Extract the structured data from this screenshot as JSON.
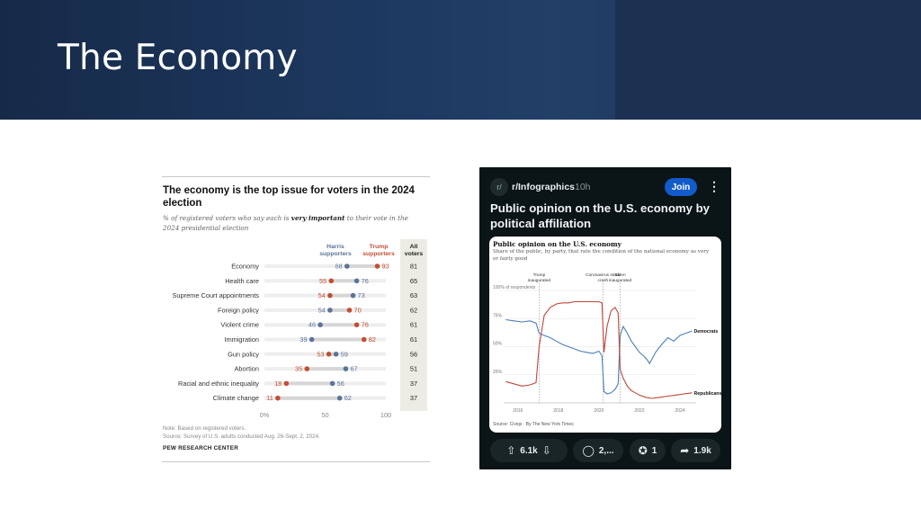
{
  "slide": {
    "title": "The Economy"
  },
  "pew": {
    "title": "The economy is the top issue for voters in the 2024 election",
    "subtitle_pre": "% of registered voters who say each is ",
    "subtitle_bold": "very important",
    "subtitle_post": " to their vote in the 2024 presidential election",
    "col_harris": "Harris supporters",
    "col_trump": "Trump supporters",
    "col_all": "All voters",
    "note": "Note: Based on registered voters.",
    "source": "Source: Survey of U.S. adults conducted Aug. 26-Sept. 2, 2024.",
    "brand": "PEW RESEARCH CENTER"
  },
  "chart_data": [
    {
      "type": "dot",
      "title": "The economy is the top issue for voters in the 2024 election",
      "xlim": [
        0,
        100
      ],
      "xticks": [
        "0%",
        "50",
        "100"
      ],
      "categories": [
        "Economy",
        "Health care",
        "Supreme Court appointments",
        "Foreign policy",
        "Violent crime",
        "Immigration",
        "Gun policy",
        "Abortion",
        "Racial and ethnic inequality",
        "Climate change"
      ],
      "series": [
        {
          "name": "Harris supporters",
          "color": "#5b7398",
          "values": [
            68,
            76,
            73,
            54,
            46,
            39,
            59,
            67,
            56,
            62
          ]
        },
        {
          "name": "Trump supporters",
          "color": "#c24e33",
          "values": [
            93,
            55,
            54,
            70,
            76,
            82,
            53,
            35,
            18,
            11
          ]
        },
        {
          "name": "All voters",
          "values": [
            81,
            65,
            63,
            62,
            61,
            61,
            56,
            51,
            37,
            37
          ]
        }
      ]
    },
    {
      "type": "line",
      "title": "Public opinion on the U.S. economy",
      "subtitle": "Share of the public, by party, that rate the condition of the national economy as very or fairly good",
      "ylim": [
        0,
        100
      ],
      "yticks": [
        "25%",
        "50%",
        "75%",
        "100% of respondents"
      ],
      "xticks": [
        "2016",
        "2018",
        "2020",
        "2022",
        "2024"
      ],
      "annotations": [
        {
          "label": "Trump inaugurated",
          "x": 2017.05
        },
        {
          "label": "Coronavirus stock crash",
          "x": 2020.2
        },
        {
          "label": "Biden inaugurated",
          "x": 2021.05
        }
      ],
      "series": [
        {
          "name": "Democrats",
          "color": "#4a7fb5",
          "points": [
            [
              2015.4,
              74
            ],
            [
              2015.8,
              73
            ],
            [
              2016.2,
              72
            ],
            [
              2016.6,
              73
            ],
            [
              2016.9,
              71
            ],
            [
              2017.05,
              62
            ],
            [
              2017.3,
              60
            ],
            [
              2017.6,
              58
            ],
            [
              2017.9,
              55
            ],
            [
              2018.2,
              52
            ],
            [
              2018.5,
              50
            ],
            [
              2018.8,
              48
            ],
            [
              2019.1,
              46
            ],
            [
              2019.4,
              45
            ],
            [
              2019.7,
              44
            ],
            [
              2020.0,
              46
            ],
            [
              2020.15,
              42
            ],
            [
              2020.25,
              10
            ],
            [
              2020.4,
              8
            ],
            [
              2020.6,
              9
            ],
            [
              2020.8,
              12
            ],
            [
              2020.95,
              17
            ],
            [
              2021.05,
              60
            ],
            [
              2021.2,
              68
            ],
            [
              2021.4,
              62
            ],
            [
              2021.6,
              55
            ],
            [
              2021.8,
              50
            ],
            [
              2022.0,
              45
            ],
            [
              2022.2,
              42
            ],
            [
              2022.4,
              38
            ],
            [
              2022.5,
              35
            ],
            [
              2022.8,
              45
            ],
            [
              2023.1,
              52
            ],
            [
              2023.4,
              58
            ],
            [
              2023.7,
              55
            ],
            [
              2024.0,
              60
            ],
            [
              2024.3,
              62
            ],
            [
              2024.6,
              64
            ]
          ]
        },
        {
          "name": "Republicans",
          "color": "#c0453a",
          "points": [
            [
              2015.4,
              19
            ],
            [
              2015.8,
              17
            ],
            [
              2016.2,
              15
            ],
            [
              2016.6,
              16
            ],
            [
              2016.9,
              18
            ],
            [
              2017.05,
              50
            ],
            [
              2017.3,
              78
            ],
            [
              2017.6,
              85
            ],
            [
              2017.9,
              88
            ],
            [
              2018.2,
              89
            ],
            [
              2018.5,
              89
            ],
            [
              2018.8,
              90
            ],
            [
              2019.1,
              90
            ],
            [
              2019.4,
              90
            ],
            [
              2019.7,
              90
            ],
            [
              2020.0,
              90
            ],
            [
              2020.15,
              89
            ],
            [
              2020.25,
              45
            ],
            [
              2020.4,
              68
            ],
            [
              2020.6,
              82
            ],
            [
              2020.8,
              85
            ],
            [
              2020.95,
              80
            ],
            [
              2021.05,
              30
            ],
            [
              2021.2,
              22
            ],
            [
              2021.4,
              15
            ],
            [
              2021.6,
              11
            ],
            [
              2021.8,
              9
            ],
            [
              2022.0,
              7
            ],
            [
              2022.3,
              5
            ],
            [
              2022.6,
              4
            ],
            [
              2023.0,
              5
            ],
            [
              2023.4,
              6
            ],
            [
              2023.8,
              7
            ],
            [
              2024.2,
              8
            ],
            [
              2024.6,
              9
            ]
          ]
        }
      ],
      "source": "Source: Civiqs  ·  By The New York Times"
    }
  ],
  "reddit": {
    "icon_glyph": "r/",
    "subreddit": "r/Infographics",
    "time": "10h",
    "join_label": "Join",
    "more_glyph": "⋮",
    "post_title": "Public opinion on the U.S. economy by political affiliation",
    "upvotes": "6.1k",
    "comments": "2,...",
    "award_count": "1",
    "shares": "1.9k"
  }
}
